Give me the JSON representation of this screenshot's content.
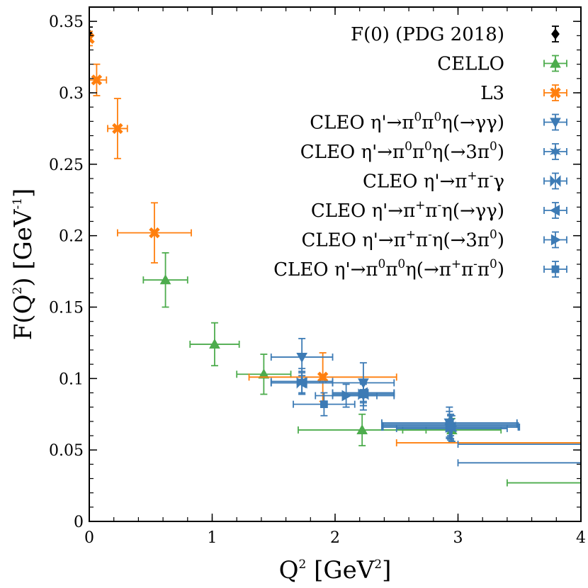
{
  "chart_data": {
    "type": "scatter",
    "xlabel_main": "Q",
    "xlabel_sup": "2",
    "xlabel_unit_pre": " [GeV",
    "xlabel_unit_sup": "2",
    "xlabel_unit_post": "]",
    "ylabel_main": "F(Q",
    "ylabel_sup": "2",
    "ylabel_mid": ") [GeV",
    "ylabel_unit_sup": "-1",
    "ylabel_post": "]",
    "xlim": [
      0,
      4
    ],
    "ylim": [
      0,
      0.36
    ],
    "x_ticks": [
      0,
      1,
      2,
      3,
      4
    ],
    "x_tick_labels": [
      "0",
      "1",
      "2",
      "3",
      "4"
    ],
    "y_ticks": [
      0,
      0.05,
      0.1,
      0.15,
      0.2,
      0.25,
      0.3,
      0.35
    ],
    "y_tick_labels": [
      "0",
      "0.05",
      "0.1",
      "0.15",
      "0.2",
      "0.25",
      "0.3",
      "0.35"
    ],
    "legend_position": "top-right",
    "series": [
      {
        "key": "pdg",
        "marker": "diamond",
        "color": "#000000",
        "legend": [
          "F(0) (PDG 2018)"
        ],
        "points": [
          {
            "x": 0.0,
            "y": 0.341,
            "xerr": 0,
            "yerr": 0.005
          }
        ]
      },
      {
        "key": "cello",
        "marker": "triangle-up",
        "color": "#4dac4d",
        "legend": [
          "CELLO"
        ],
        "points": [
          {
            "x": 0.62,
            "y": 0.169,
            "xerr": 0.18,
            "yerr": 0.019
          },
          {
            "x": 1.02,
            "y": 0.124,
            "xerr": 0.2,
            "yerr": 0.015
          },
          {
            "x": 1.42,
            "y": 0.103,
            "xerr": 0.22,
            "yerr": 0.014
          },
          {
            "x": 2.22,
            "y": 0.064,
            "xerr": 0.52,
            "yerr": 0.011
          },
          {
            "x": 2.95,
            "y": 0.064,
            "xerr": 0.4,
            "yerr": 0.008
          },
          {
            "x": 4.4,
            "y": 0.027,
            "xerr": 1.0,
            "yerr": 0.006
          }
        ]
      },
      {
        "key": "l3",
        "marker": "x-thick",
        "color": "#ff7f0e",
        "legend": [
          "L3"
        ],
        "points": [
          {
            "x": 0.0,
            "y": 0.338,
            "xerr": 0.01,
            "yerr": 0.005
          },
          {
            "x": 0.06,
            "y": 0.309,
            "xerr": 0.08,
            "yerr": 0.011
          },
          {
            "x": 0.23,
            "y": 0.275,
            "xerr": 0.08,
            "yerr": 0.021
          },
          {
            "x": 0.53,
            "y": 0.202,
            "xerr": 0.3,
            "yerr": 0.021
          },
          {
            "x": 1.9,
            "y": 0.101,
            "xerr": 0.6,
            "yerr": 0.017
          },
          {
            "x": 4.25,
            "y": 0.055,
            "xerr": 1.75,
            "yerr": 0.004
          }
        ]
      },
      {
        "key": "cleo1",
        "marker": "triangle-down",
        "color": "#3d7bb5",
        "legend": [
          "CLEO η'→π",
          "0",
          "π",
          "0",
          "η(→γγ)",
          ""
        ],
        "points": [
          {
            "x": 1.73,
            "y": 0.115,
            "xerr": 0.25,
            "yerr": 0.013
          },
          {
            "x": 2.23,
            "y": 0.097,
            "xerr": 0.25,
            "yerr": 0.014
          },
          {
            "x": 2.93,
            "y": 0.069,
            "xerr": 0.55,
            "yerr": 0.011
          },
          {
            "x": 4.2,
            "y": 0.041,
            "xerr": 1.2,
            "yerr": 0.006
          }
        ]
      },
      {
        "key": "cleo2",
        "marker": "star",
        "color": "#3d7bb5",
        "legend": [
          "CLEO η'→π",
          "0",
          "π",
          "0",
          "η(→3π",
          "0",
          ")"
        ],
        "points": [
          {
            "x": 1.73,
            "y": 0.098,
            "xerr": 0.25,
            "yerr": 0.009
          },
          {
            "x": 2.23,
            "y": 0.088,
            "xerr": 0.25,
            "yerr": 0.01
          },
          {
            "x": 2.95,
            "y": 0.065,
            "xerr": 0.45,
            "yerr": 0.009
          }
        ]
      },
      {
        "key": "cleo3",
        "marker": "bowtie",
        "color": "#3d7bb5",
        "legend": [
          "CLEO η'→π",
          "+",
          "π",
          "-",
          "γ",
          ""
        ],
        "points": [
          {
            "x": 1.73,
            "y": 0.097,
            "xerr": 0.25,
            "yerr": 0.008
          },
          {
            "x": 2.23,
            "y": 0.089,
            "xerr": 0.25,
            "yerr": 0.008
          },
          {
            "x": 2.94,
            "y": 0.066,
            "xerr": 0.56,
            "yerr": 0.008
          },
          {
            "x": 4.25,
            "y": 0.054,
            "xerr": 1.25,
            "yerr": 0.004
          }
        ]
      },
      {
        "key": "cleo4",
        "marker": "triangle-left",
        "color": "#3d7bb5",
        "legend": [
          "CLEO η'→π",
          "+",
          "π",
          "-",
          "η(→γγ)",
          ""
        ],
        "points": [
          {
            "x": 1.73,
            "y": 0.097,
            "xerr": 0.25,
            "yerr": 0.007
          },
          {
            "x": 2.23,
            "y": 0.09,
            "xerr": 0.25,
            "yerr": 0.009
          },
          {
            "x": 2.93,
            "y": 0.068,
            "xerr": 0.55,
            "yerr": 0.009
          }
        ]
      },
      {
        "key": "cleo5",
        "marker": "triangle-right",
        "color": "#3d7bb5",
        "legend": [
          "CLEO η'→π",
          "+",
          "π",
          "-",
          "η(→3π",
          "0",
          ")"
        ],
        "points": [
          {
            "x": 2.09,
            "y": 0.088,
            "xerr": 0.25,
            "yerr": 0.008
          },
          {
            "x": 2.94,
            "y": 0.066,
            "xerr": 0.55,
            "yerr": 0.009
          }
        ]
      },
      {
        "key": "cleo6",
        "marker": "square",
        "color": "#3d7bb5",
        "legend": [
          "CLEO η'→π",
          "0",
          "π",
          "0",
          "η(→π",
          "+",
          "π",
          "-",
          "π",
          "0",
          ")"
        ],
        "points": [
          {
            "x": 1.91,
            "y": 0.082,
            "xerr": 0.25,
            "yerr": 0.008
          },
          {
            "x": 2.23,
            "y": 0.09,
            "xerr": 0.25,
            "yerr": 0.006
          },
          {
            "x": 2.94,
            "y": 0.067,
            "xerr": 0.55,
            "yerr": 0.007
          }
        ]
      }
    ]
  }
}
